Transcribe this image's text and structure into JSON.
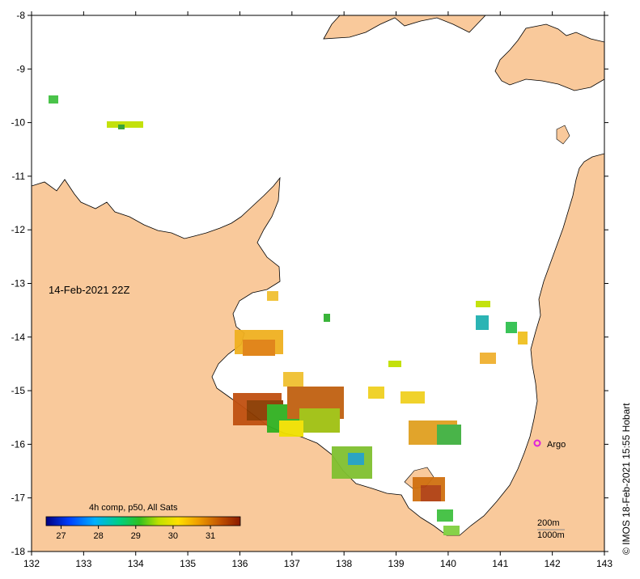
{
  "map": {
    "lon_ticks": [
      "132",
      "133",
      "134",
      "135",
      "136",
      "137",
      "138",
      "139",
      "140",
      "141",
      "142",
      "143"
    ],
    "lat_ticks": [
      "-8",
      "-9",
      "-10",
      "-11",
      "-12",
      "-13",
      "-14",
      "-15",
      "-16",
      "-17",
      "-18"
    ],
    "timestamp": "14-Feb-2021 22Z",
    "argo_label": "Argo",
    "argo_marker_color": "#dd22dd",
    "depth_contours": [
      "200m",
      "1000m"
    ],
    "credit": "© IMOS 18-Feb-2021 15:55 Hobart",
    "colors": {
      "land": "#f9c99b",
      "sea": "#ffffff"
    }
  },
  "colorbar": {
    "title": "4h comp, p50, All Sats",
    "ticks": [
      "27",
      "28",
      "29",
      "30",
      "31"
    ]
  }
}
